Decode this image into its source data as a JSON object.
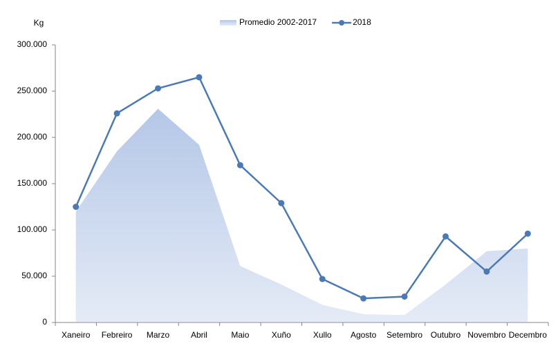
{
  "chart_data": {
    "type": "line",
    "y_label": "Kg",
    "categories": [
      "Xaneiro",
      "Febreiro",
      "Marzo",
      "Abril",
      "Maio",
      "Xuño",
      "Xullo",
      "Agosto",
      "Setembro",
      "Outubro",
      "Novembro",
      "Decembro"
    ],
    "series": [
      {
        "name": "Promedio 2002-2017",
        "kind": "area",
        "color": "#b4c7e7",
        "values": [
          120000,
          185000,
          231000,
          192000,
          61000,
          41000,
          19000,
          9000,
          8000,
          41000,
          77000,
          80000
        ]
      },
      {
        "name": "2018",
        "kind": "line",
        "color": "#4a7ab5",
        "values": [
          125000,
          226000,
          253000,
          265000,
          170000,
          129000,
          47000,
          26000,
          28000,
          93000,
          55000,
          96000
        ]
      }
    ],
    "ylim": [
      0,
      300000
    ],
    "yticks": [
      0,
      {
        "value": 50000,
        "label": "50.000"
      },
      {
        "value": 100000,
        "label": "100.000"
      },
      {
        "value": 150000,
        "label": "150.000"
      },
      {
        "value": 200000,
        "label": "200.000"
      },
      {
        "value": 250000,
        "label": "250.000"
      },
      {
        "value": 300000,
        "label": "300.000"
      }
    ],
    "legend": "top"
  }
}
